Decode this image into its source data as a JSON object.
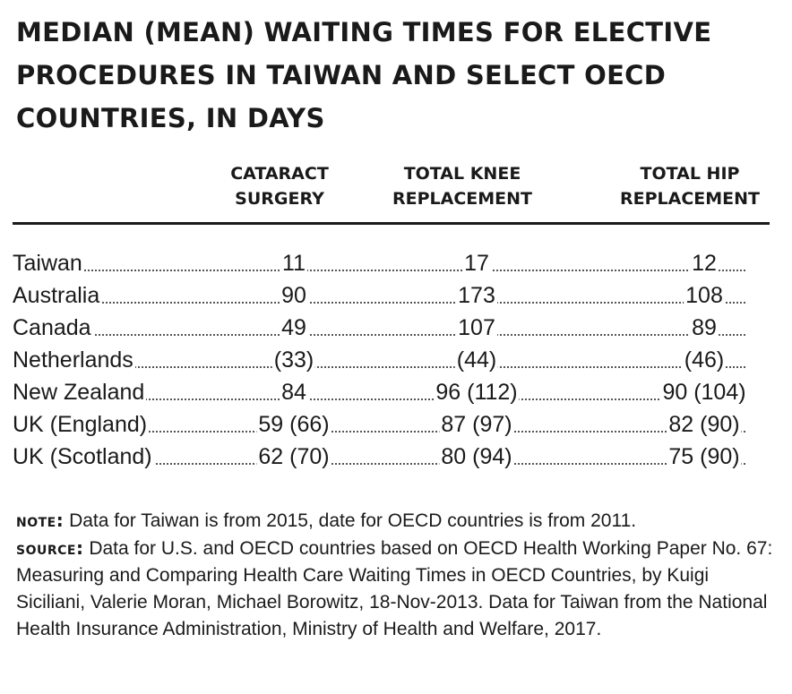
{
  "chart_data": {
    "type": "table",
    "title": "MEDIAN (MEAN) WAITING TIMES FOR ELECTIVE PROCEDURES IN TAIWAN AND SELECT OECD COUNTRIES, IN DAYS",
    "columns": [
      {
        "line1": "CATARACT",
        "line2": "SURGERY"
      },
      {
        "line1": "TOTAL KNEE",
        "line2": "REPLACEMENT"
      },
      {
        "line1": "TOTAL HIP",
        "line2": "REPLACEMENT"
      }
    ],
    "rows": [
      {
        "country": "Taiwan",
        "values": [
          "11",
          "17",
          "12"
        ]
      },
      {
        "country": "Australia",
        "values": [
          "90",
          "173",
          "108"
        ]
      },
      {
        "country": "Canada",
        "values": [
          "49",
          "107",
          "89"
        ]
      },
      {
        "country": "Netherlands",
        "values": [
          "(33)",
          "(44)",
          "(46)"
        ]
      },
      {
        "country": "New Zealand",
        "values": [
          "84",
          "96 (112)",
          "90 (104)"
        ]
      },
      {
        "country": "UK (England)",
        "values": [
          "59 (66)",
          "87 (97)",
          "82 (90)"
        ]
      },
      {
        "country": "UK (Scotland)",
        "values": [
          "62 (70)",
          "80 (94)",
          "75 (90)"
        ]
      }
    ]
  },
  "notes": {
    "note_label": "NOTE:",
    "note_text": "Data for Taiwan is from 2015, date for OECD countries is from 2011.",
    "source_label": "SOURCE:",
    "source_text": "Data for U.S. and OECD countries based on OECD Health Working Paper No. 67: Measuring and Comparing Health Care Waiting Times in OECD Countries, by Kuigi Siciliani, Valerie Moran, Michael Borowitz, 18-Nov-2013. Data for Taiwan from the National Health Insurance Administration, Ministry of Health and Welfare, 2017."
  }
}
